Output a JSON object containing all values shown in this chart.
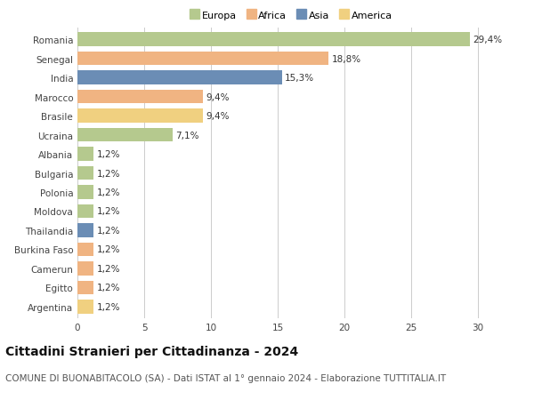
{
  "categories": [
    "Romania",
    "Senegal",
    "India",
    "Marocco",
    "Brasile",
    "Ucraina",
    "Albania",
    "Bulgaria",
    "Polonia",
    "Moldova",
    "Thailandia",
    "Burkina Faso",
    "Camerun",
    "Egitto",
    "Argentina"
  ],
  "values": [
    29.4,
    18.8,
    15.3,
    9.4,
    9.4,
    7.1,
    1.2,
    1.2,
    1.2,
    1.2,
    1.2,
    1.2,
    1.2,
    1.2,
    1.2
  ],
  "continents": [
    "Europa",
    "Africa",
    "Asia",
    "Africa",
    "America",
    "Europa",
    "Europa",
    "Europa",
    "Europa",
    "Europa",
    "Asia",
    "Africa",
    "Africa",
    "Africa",
    "America"
  ],
  "labels": [
    "29,4%",
    "18,8%",
    "15,3%",
    "9,4%",
    "9,4%",
    "7,1%",
    "1,2%",
    "1,2%",
    "1,2%",
    "1,2%",
    "1,2%",
    "1,2%",
    "1,2%",
    "1,2%",
    "1,2%"
  ],
  "continent_colors": {
    "Europa": "#b5c98e",
    "Africa": "#f0b482",
    "Asia": "#6b8db5",
    "America": "#f0d080"
  },
  "legend_order": [
    "Europa",
    "Africa",
    "Asia",
    "America"
  ],
  "xlim": [
    0,
    32
  ],
  "xticks": [
    0,
    5,
    10,
    15,
    20,
    25,
    30
  ],
  "title": "Cittadini Stranieri per Cittadinanza - 2024",
  "subtitle": "COMUNE DI BUONABITACOLO (SA) - Dati ISTAT al 1° gennaio 2024 - Elaborazione TUTTITALIA.IT",
  "title_fontsize": 10,
  "subtitle_fontsize": 7.5,
  "label_fontsize": 7.5,
  "tick_fontsize": 7.5,
  "background_color": "#ffffff",
  "grid_color": "#cccccc"
}
